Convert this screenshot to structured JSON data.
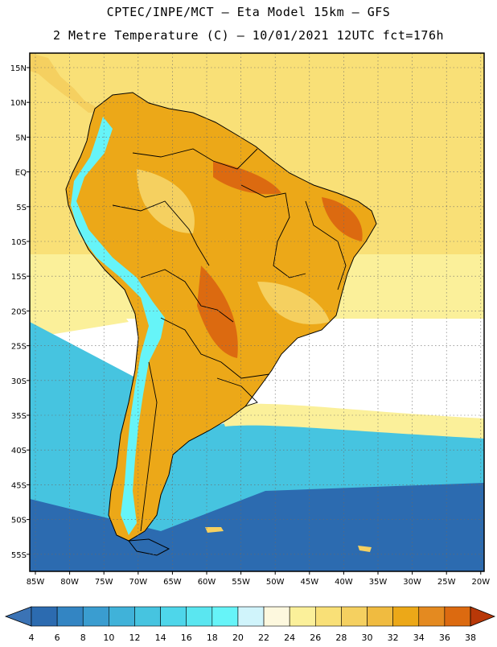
{
  "header": {
    "line1": "CPTEC/INPE/MCT –  Eta Model 15km – GFS",
    "line2": "2 Metre Temperature (C) – 10/01/2021 12UTC fct=176h"
  },
  "axes": {
    "lat_labels": [
      "15N",
      "10N",
      "5N",
      "EQ",
      "5S",
      "10S",
      "15S",
      "20S",
      "25S",
      "30S",
      "35S",
      "40S",
      "45S",
      "50S",
      "55S"
    ],
    "lon_labels": [
      "85W",
      "80W",
      "75W",
      "70W",
      "65W",
      "60W",
      "55W",
      "50W",
      "45W",
      "40W",
      "35W",
      "30W",
      "25W",
      "20W"
    ]
  },
  "colorbar": {
    "tick_labels": [
      "4",
      "6",
      "8",
      "10",
      "12",
      "14",
      "16",
      "18",
      "20",
      "22",
      "24",
      "26",
      "28",
      "30",
      "32",
      "34",
      "36",
      "38"
    ],
    "colors": [
      "#2c6bb0",
      "#3385c3",
      "#3a9dd0",
      "#40b2d9",
      "#46c4e0",
      "#4ed6ea",
      "#5ae6f0",
      "#66f4f8",
      "#d0f4fb",
      "#fdf8de",
      "#fbf09a",
      "#f9e077",
      "#f5d060",
      "#f0bb40",
      "#eca818",
      "#e48a20",
      "#dc6a10",
      "#c84008"
    ],
    "low_color": "#3b73b5",
    "high_color": "#b83808"
  },
  "legend_colors": {
    "land_warm": "#eca818",
    "land_mid": "#f5d060",
    "land_hot": "#dc6a10",
    "andes_cold": "#66f4f8",
    "ocean_warm": "#f9e077",
    "ocean_mild": "#fbf09a",
    "ocean_cool": "#46c4e0",
    "ocean_cold": "#2c6bb0"
  }
}
